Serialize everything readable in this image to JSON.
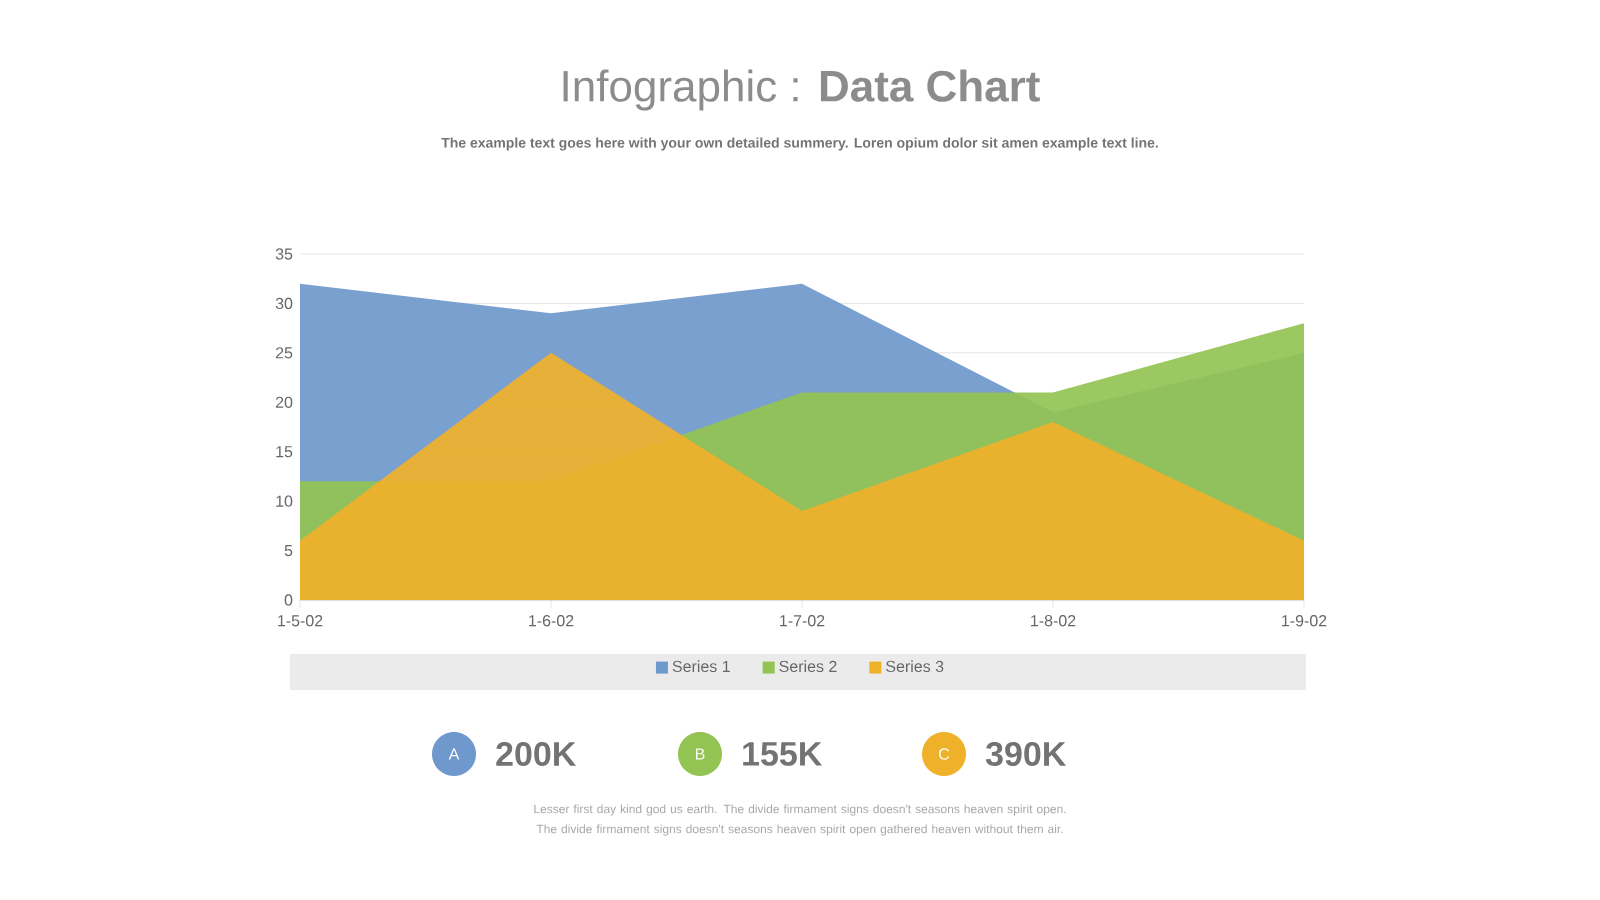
{
  "chart_data": {
    "type": "area",
    "title": "Infographic : **Data Chart**",
    "subtitle": "The example text goes here with your own detailed summery.  Loren opium dolor sit amen example text line.",
    "categories": [
      "1-5-02",
      "1-6-02",
      "1-7-02",
      "1-8-02",
      "1-9-02"
    ],
    "series": [
      {
        "name": "Series 1",
        "color": "#6f98cc",
        "values": [
          32,
          29,
          32,
          19,
          25
        ]
      },
      {
        "name": "Series 2",
        "color": "#92c353",
        "values": [
          12,
          12,
          21,
          21,
          28
        ]
      },
      {
        "name": "Series 3",
        "color": "#f0b12a",
        "values": [
          6,
          25,
          9,
          18,
          6
        ]
      }
    ],
    "ylim": [
      0,
      35
    ],
    "yticks": [
      0,
      5,
      10,
      15,
      20,
      25,
      30,
      35
    ],
    "grid": "y",
    "legend": "bottom",
    "annotations": [
      "A",
      "200K",
      "B",
      "155K",
      "C",
      "390K",
      "Lesser first day kind god us earth. The divide firmament signs doesn't seasons heaven spirit open. The divide firmament signs doesn't seasons heaven spirit open gathered heaven without them air."
    ]
  }
}
